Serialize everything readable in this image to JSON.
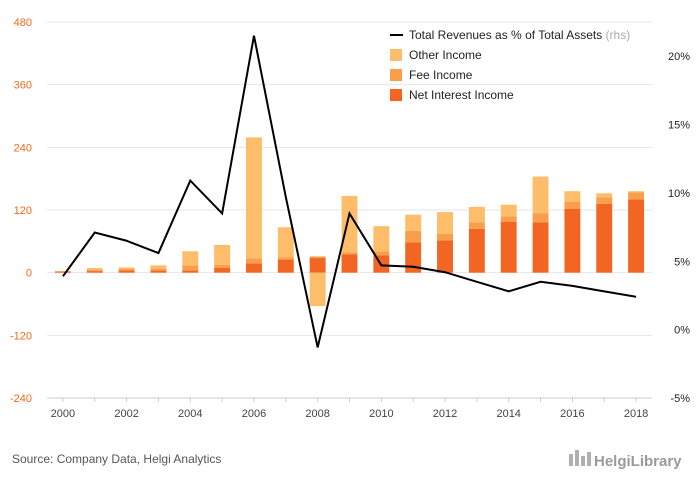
{
  "chart_data": {
    "type": "bar",
    "title": "",
    "xlabel": "",
    "ylabel": "",
    "years": [
      2000,
      2001,
      2002,
      2003,
      2004,
      2005,
      2006,
      2007,
      2008,
      2009,
      2010,
      2011,
      2012,
      2013,
      2014,
      2015,
      2016,
      2017,
      2018
    ],
    "x_tick_labels": [
      "2000",
      "2002",
      "2004",
      "2006",
      "2008",
      "2010",
      "2012",
      "2014",
      "2016",
      "2018"
    ],
    "ylim": [
      -240,
      480
    ],
    "y_ticks": [
      480,
      360,
      240,
      120,
      0,
      -120,
      -240
    ],
    "y_tick_labels": [
      "480",
      "360",
      "240",
      "120",
      "0",
      "-120",
      "-240"
    ],
    "y2lim": [
      -5,
      22.5
    ],
    "y2_ticks": [
      20,
      15,
      10,
      5,
      0,
      -5
    ],
    "y2_tick_labels": [
      "20%",
      "15%",
      "10%",
      "5%",
      "0%",
      "-5%"
    ],
    "grid": true,
    "legend_position": "top-right",
    "series": [
      {
        "name": "Net Interest Income",
        "type": "bar",
        "color": "#f26522",
        "values": [
          2,
          3,
          4,
          4,
          4,
          9,
          18,
          25,
          28,
          35,
          33,
          58,
          62,
          84,
          97,
          96,
          122,
          132,
          140
        ]
      },
      {
        "name": "Fee Income",
        "type": "bar",
        "color": "#f99e4a",
        "values": [
          1,
          2,
          3,
          3,
          10,
          6,
          9,
          4,
          3,
          4,
          8,
          22,
          12,
          12,
          11,
          18,
          14,
          12,
          14
        ]
      },
      {
        "name": "Other Income",
        "type": "bar",
        "color": "#fdbd6b",
        "values": [
          0,
          4,
          3,
          7,
          27,
          38,
          232,
          58,
          -64,
          108,
          48,
          31,
          42,
          30,
          22,
          70,
          20,
          8,
          2
        ]
      },
      {
        "name": "Total Revenues as % of Total Assets",
        "name_suffix": "(rhs)",
        "type": "line",
        "axis": "right",
        "color": "#000000",
        "values": [
          3.9,
          7.1,
          6.5,
          5.6,
          10.9,
          8.5,
          21.5,
          9.7,
          -1.3,
          8.5,
          4.7,
          4.6,
          4.2,
          3.5,
          2.8,
          3.5,
          3.2,
          2.8,
          2.4
        ]
      }
    ]
  },
  "footer": {
    "source": "Source: Company Data, Helgi Analytics",
    "brand": "HelgiLibrary"
  }
}
